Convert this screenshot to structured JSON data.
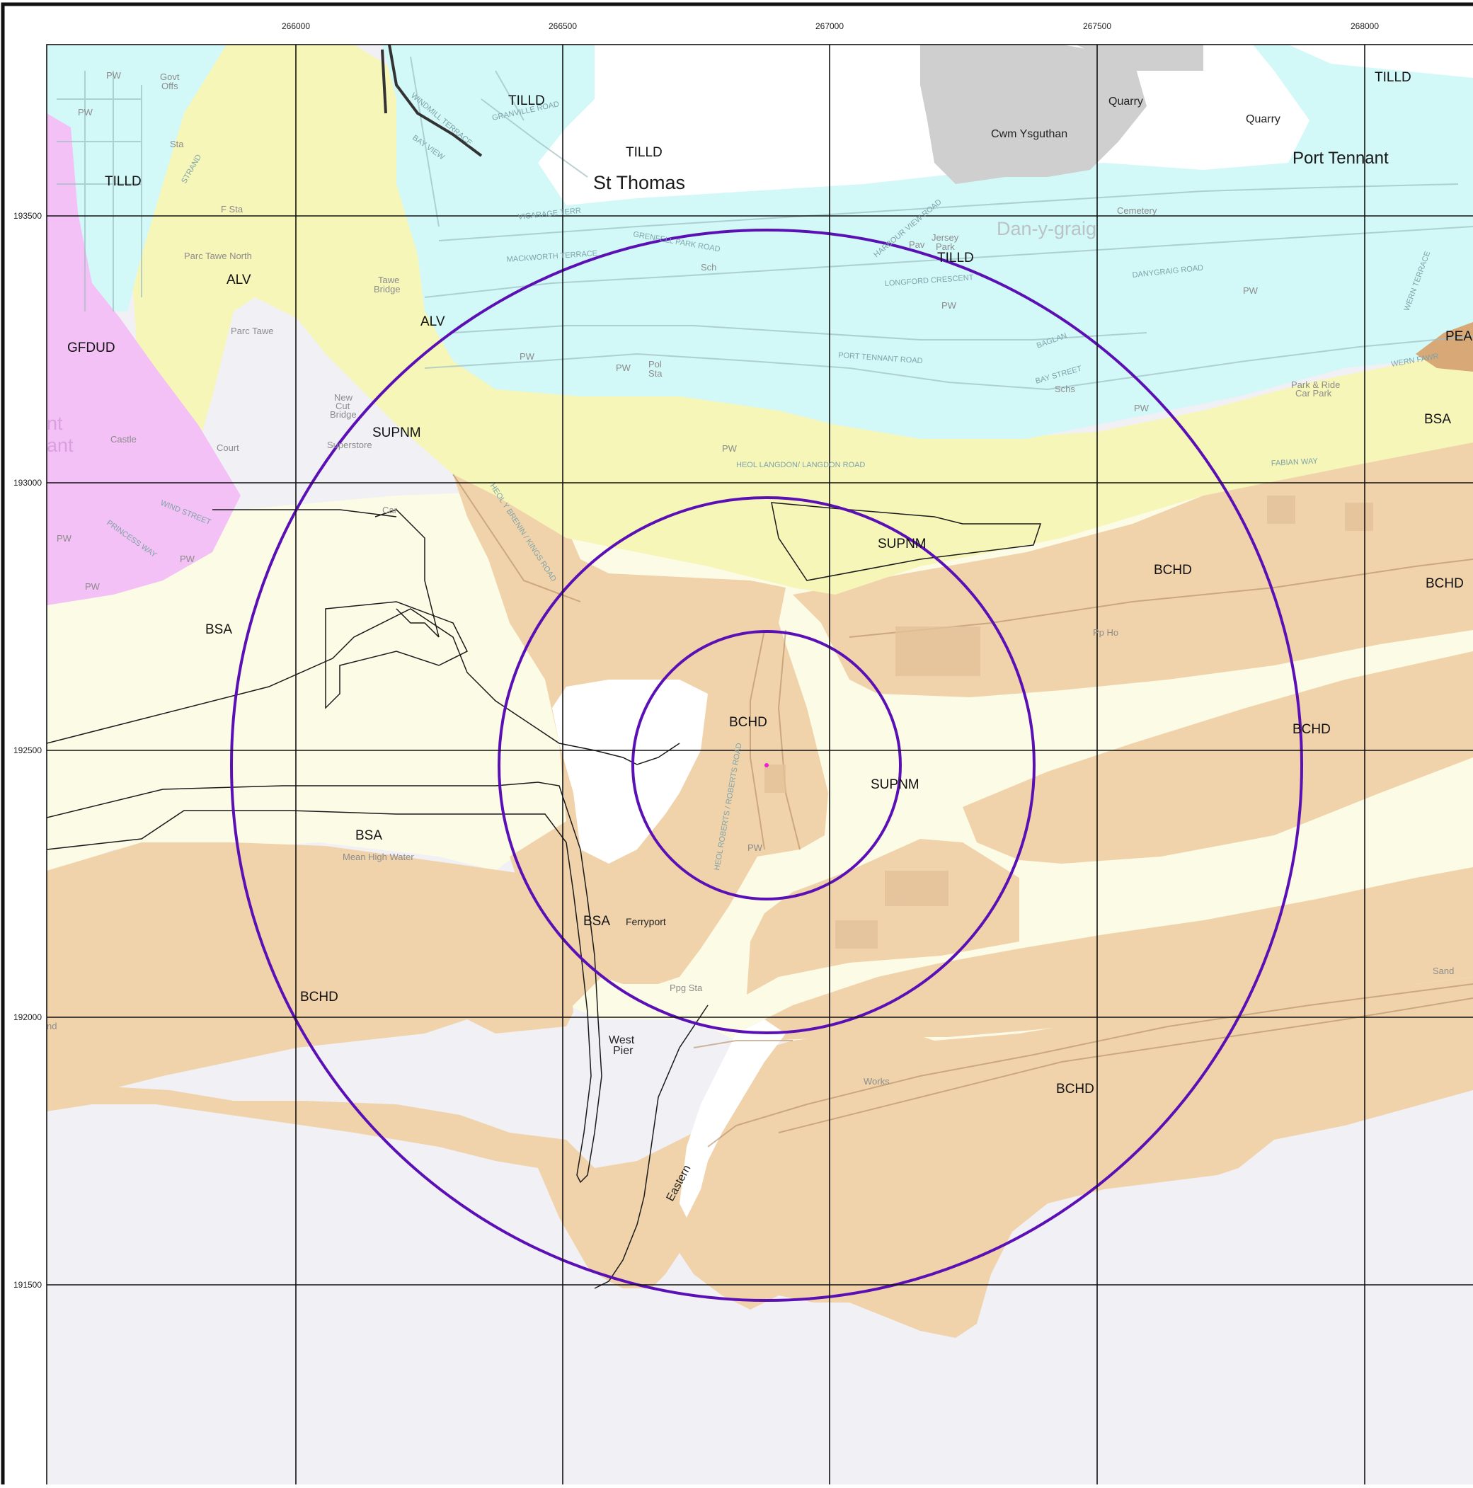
{
  "grid": {
    "eastings": [
      "266000",
      "266500",
      "267000",
      "267500",
      "268000"
    ],
    "northings": [
      "193500",
      "193000",
      "192500",
      "192000",
      "191500"
    ]
  },
  "geology_labels": {
    "tilld_1": "TILLD",
    "tilld_2": "TILLD",
    "tilld_3": "TILLD",
    "tilld_4": "TILLD",
    "tilld_5": "TILLD",
    "alv_1": "ALV",
    "alv_2": "ALV",
    "gfdud": "GFDUD",
    "supnm_1": "SUPNM",
    "supnm_2": "SUPNM",
    "supnm_3": "SUPNM",
    "bsa_1": "BSA",
    "bsa_2": "BSA",
    "bsa_3": "BSA",
    "bsa_4": "BSA",
    "bchd_1": "BCHD",
    "bchd_2": "BCHD",
    "bchd_3": "BCHD",
    "bchd_4": "BCHD",
    "bchd_5": "BCHD",
    "bchd_6": "BCHD",
    "pea": "PEA"
  },
  "place_names": {
    "st_thomas": "St Thomas",
    "port_tennant": "Port Tennant",
    "dan_y_graig": "Dan-y-graig",
    "cwm_ysguthan": "Cwm Ysguthan",
    "quarry_1": "Quarry",
    "quarry_2": "Quarry",
    "parc_tawe_north": "Parc Tawe North",
    "parc_tawe": "Parc Tawe",
    "tawe_bridge_1": "Tawe",
    "tawe_bridge_2": "Bridge",
    "new_cut_1": "New",
    "new_cut_2": "Cut",
    "new_cut_3": "Bridge",
    "superstore": "Superstore",
    "ferryport": "Ferryport",
    "west_pier_1": "West",
    "west_pier_2": "Pier",
    "eastern": "Eastern",
    "works": "Works",
    "sand": "Sand",
    "mean_high_water": "Mean High Water",
    "cemetery": "Cemetery",
    "jersey_park_1": "Jersey",
    "jersey_park_2": "Park",
    "park_ride_1": "Park & Ride",
    "park_ride_2": "Car Park",
    "sch": "Sch",
    "schs": "Schs",
    "pol_sta_1": "Pol",
    "pol_sta_2": "Sta",
    "ppg_sta": "Ppg Sta",
    "pp_ho": "Pp Ho",
    "pav": "Pav",
    "f_sta": "F Sta",
    "govt_offs_1": "Govt",
    "govt_offs_2": "Offs",
    "sta": "Sta",
    "court": "Court",
    "castle": "Castle",
    "car": "Car",
    "pw_1": "PW",
    "pw_2": "PW",
    "pw_3": "PW",
    "pw_4": "PW",
    "pw_5": "PW",
    "pw_6": "PW",
    "pw_7": "PW",
    "pw_8": "PW",
    "pw_9": "PW",
    "pw_10": "PW",
    "pw_11": "PW",
    "pw_12": "PW",
    "edge_nt": "nt",
    "edge_ant": "ant",
    "edge_nd": "nd"
  },
  "streets": {
    "langdon_road": "HEOL LANGDON/ LANGDON ROAD",
    "port_tennant_road": "PORT TENNANT ROAD",
    "danygraig_road": "DANYGRAIG ROAD",
    "fabian_way": "FABIAN WAY",
    "kings_road": "HEOL Y BRENIN / KINGS ROAD",
    "roberts_road": "HEOL ROBERTS / ROBERTS ROAD",
    "windmill_terrace": "WINDMILL TERRACE",
    "bay_view": "BAY VIEW",
    "wind_street": "WIND STREET",
    "princess_way": "PRINCESS WAY",
    "strand": "STRAND",
    "mackworth_terrace": "MACKWORTH TERRACE",
    "grenfell_park_road": "GRENFELL PARK ROAD",
    "longford_crescent": "LONGFORD CRESCENT",
    "harbour_view_road": "HARBOUR VIEW ROAD",
    "granville_road": "GRANVILLE ROAD",
    "vicarage_terrace": "VICARAGE TERR",
    "bay_street": "BAY STREET",
    "baglan_street": "BAGLAN",
    "wern_terrace": "WERN TERRACE",
    "wern_fawr": "WERN FAWR"
  },
  "colors": {
    "tilld": "#d3f8f8",
    "alv": "#f6f6b9",
    "supnm": "#fcfbe6",
    "bsa": "#fcfbe6",
    "bchd": "#f1d3ab",
    "gfdud": "#f3c1f5",
    "pea": "#d9a877",
    "sea": "#f1f0f5",
    "built": "#cfcfcf",
    "ring": "#5a10b5",
    "centre": "#ee1fd0"
  }
}
